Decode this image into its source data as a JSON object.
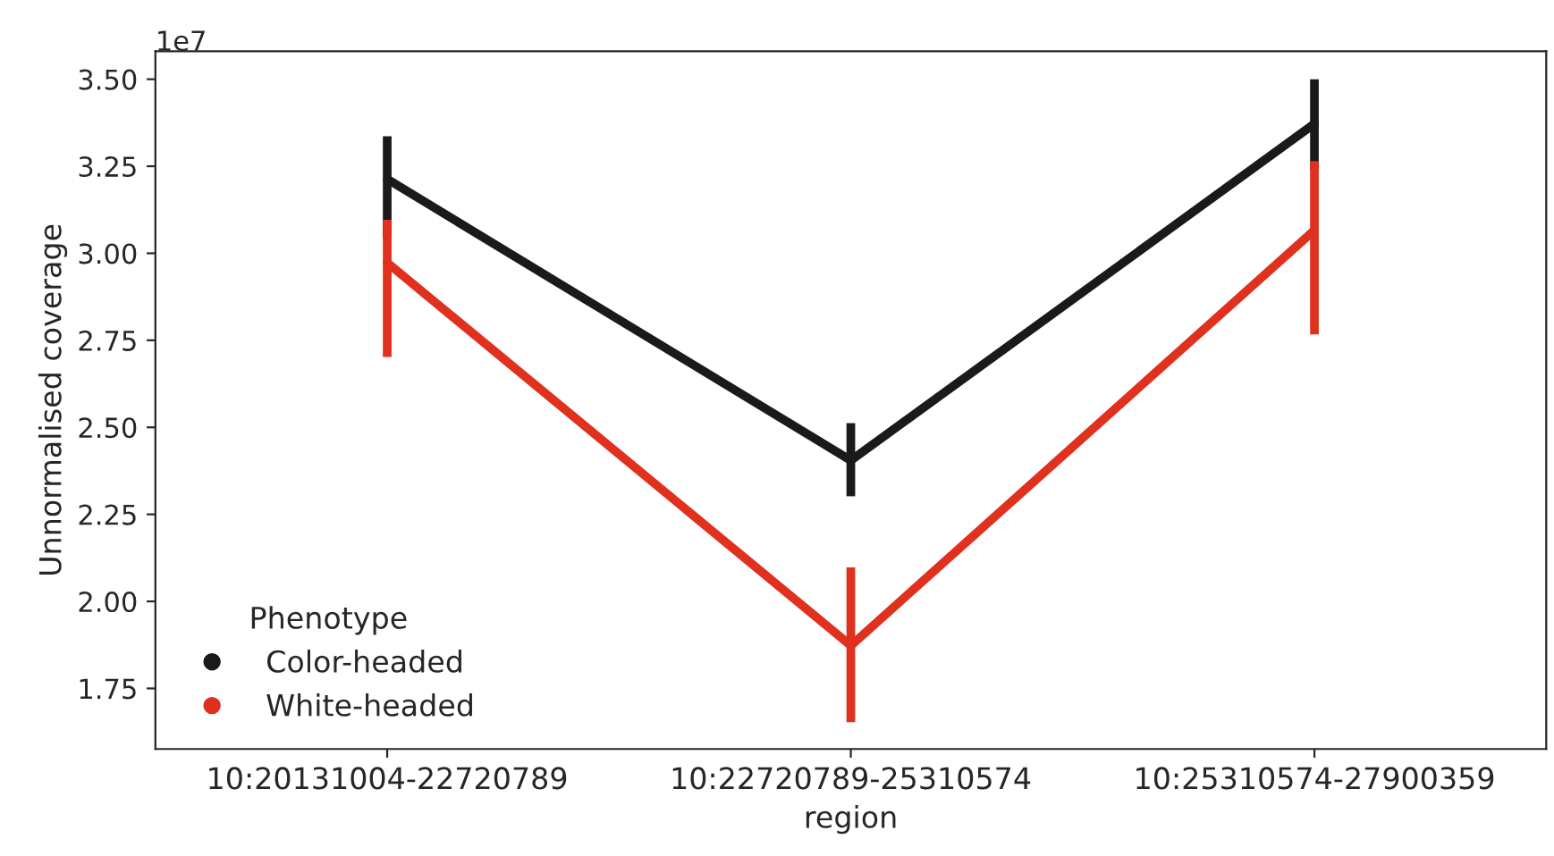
{
  "chart_data": {
    "type": "line",
    "xlabel": "region",
    "ylabel": "Unnormalised coverage",
    "legend_title": "Phenotype",
    "annotations": [
      "1e7"
    ],
    "categories": [
      "10:20131004-22720789",
      "10:22720789-25310574",
      "10:25310574-27900359"
    ],
    "series": [
      {
        "name": "Color-headed",
        "color": "#1a1a1a",
        "values": [
          3.213,
          2.405,
          3.372
        ],
        "errors": [
          [
            3.044,
            3.336
          ],
          [
            2.302,
            2.512
          ],
          [
            3.239,
            3.5
          ]
        ]
      },
      {
        "name": "White-headed",
        "color": "#e0301e",
        "values": [
          2.973,
          1.873,
          3.066
        ],
        "errors": [
          [
            2.702,
            3.096
          ],
          [
            1.653,
            2.098
          ],
          [
            2.767,
            3.265
          ]
        ]
      }
    ],
    "ylim": [
      1.576,
      3.58
    ],
    "yticks": [
      {
        "value": 1.75,
        "label": "1.75"
      },
      {
        "value": 2.0,
        "label": "2.00"
      },
      {
        "value": 2.25,
        "label": "2.25"
      },
      {
        "value": 2.5,
        "label": "2.50"
      },
      {
        "value": 2.75,
        "label": "2.75"
      },
      {
        "value": 3.0,
        "label": "3.00"
      },
      {
        "value": 3.25,
        "label": "3.25"
      },
      {
        "value": 3.5,
        "label": "3.50"
      }
    ],
    "legend": "bottom left",
    "grid": false
  }
}
